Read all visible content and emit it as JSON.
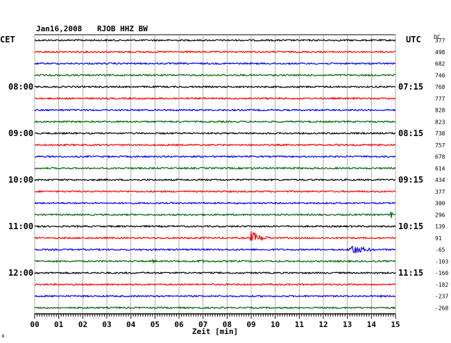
{
  "header": {
    "date": "Jan16,2008",
    "station": "RJOB HHZ BW",
    "left_zone": "CET",
    "right_zone": "UTC",
    "dc_label": "DC"
  },
  "footer": {
    "xlabel": "Zeit [min]",
    "corner_mark": "x"
  },
  "colors": {
    "trace_cycle": [
      "#000000",
      "#ff0000",
      "#0000ff",
      "#006600"
    ],
    "grid": "#999999"
  },
  "chart_data": {
    "type": "line",
    "title": "Jan16,2008  RJOB HHZ BW",
    "xlabel": "Zeit [min]",
    "x_ticks": [
      "00",
      "01",
      "02",
      "03",
      "04",
      "05",
      "06",
      "07",
      "08",
      "09",
      "10",
      "11",
      "12",
      "13",
      "14",
      "15"
    ],
    "xlim": [
      0,
      15
    ],
    "grid": true,
    "traces_per_hour": 4,
    "left_time_labels": [
      {
        "row": 4,
        "label": "08:00"
      },
      {
        "row": 8,
        "label": "09:00"
      },
      {
        "row": 12,
        "label": "10:00"
      },
      {
        "row": 16,
        "label": "11:00"
      },
      {
        "row": 20,
        "label": "12:00"
      }
    ],
    "right_time_labels": [
      {
        "row": 4,
        "label": "07:15"
      },
      {
        "row": 8,
        "label": "08:15"
      },
      {
        "row": 12,
        "label": "09:15"
      },
      {
        "row": 16,
        "label": "10:15"
      },
      {
        "row": 20,
        "label": "11:15"
      }
    ],
    "dc_offsets": [
      "377",
      "498",
      "682",
      "740",
      "768",
      "777",
      "828",
      "823",
      "738",
      "757",
      "678",
      "614",
      "434",
      "377",
      "300",
      "296",
      "139",
      "91",
      "-65",
      "-103",
      "-160",
      "-182",
      "-237",
      "-268"
    ],
    "events": [
      {
        "row": 11,
        "minute": 9.0,
        "duration": 1.2,
        "amplitude": 2.2
      },
      {
        "row": 11,
        "minute": 10.2,
        "duration": 0.8,
        "amplitude": 1.6
      },
      {
        "row": 15,
        "minute": 14.8,
        "duration": 0.25,
        "amplitude": 9.0
      },
      {
        "row": 16,
        "minute": 0.0,
        "duration": 0.6,
        "amplitude": 4.0
      },
      {
        "row": 17,
        "minute": 9.0,
        "duration": 1.4,
        "amplitude": 10.0
      },
      {
        "row": 18,
        "minute": 13.15,
        "duration": 1.9,
        "amplitude": 8.0
      },
      {
        "row": 18,
        "minute": 5.6,
        "duration": 0.4,
        "amplitude": 1.8
      },
      {
        "row": 19,
        "minute": 4.9,
        "duration": 0.5,
        "amplitude": 3.0
      },
      {
        "row": 19,
        "minute": 6.8,
        "duration": 0.8,
        "amplitude": 3.5
      }
    ]
  }
}
